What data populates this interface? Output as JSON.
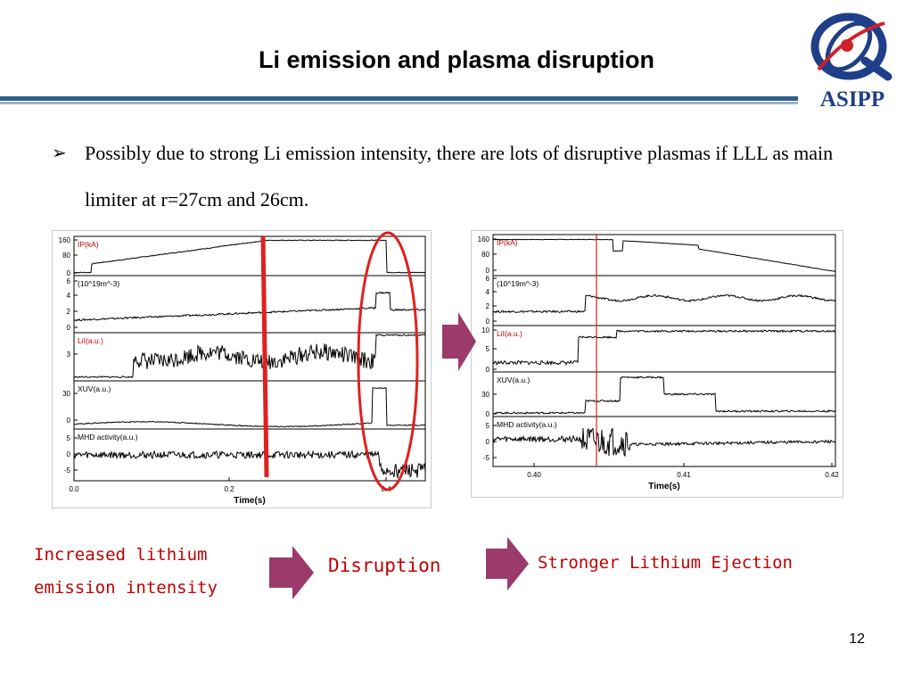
{
  "slide": {
    "title": "Li emission and plasma disruption",
    "page_number": "12"
  },
  "logo": {
    "text": "ASIPP"
  },
  "bullet": {
    "marker": "➢",
    "text": "Possibly due to strong Li emission intensity, there are lots of disruptive plasmas if LLL as main limiter at r=27cm and 26cm."
  },
  "left_plot": {
    "panels": [
      {
        "label": "IP(kA)",
        "ticks": [
          "160",
          "80",
          "0"
        ]
      },
      {
        "label": "(10^19m^-3)",
        "ticks": [
          "6",
          "4",
          "2",
          "0"
        ]
      },
      {
        "label": "LiI(a.u.)",
        "ticks": [
          "3"
        ]
      },
      {
        "label": "XUV(a.u.)",
        "ticks": [
          "30",
          "0"
        ]
      },
      {
        "label": "MHD activity(a.u.)",
        "ticks": [
          "5",
          "0",
          "-5"
        ]
      }
    ],
    "x_ticks": [
      "0.0",
      "0.2",
      "0.4"
    ],
    "xlabel": "Time(s)"
  },
  "right_plot": {
    "panels": [
      {
        "label": "IP(kA)",
        "ticks": [
          "160",
          "80",
          "0"
        ]
      },
      {
        "label": "(10^19m^-3)",
        "ticks": [
          "6",
          "4",
          "2",
          "0"
        ]
      },
      {
        "label": "LiI(a.u.)",
        "ticks": [
          "10",
          "5",
          "0"
        ]
      },
      {
        "label": "XUV(a.u.)",
        "ticks": [
          "30",
          "0"
        ]
      },
      {
        "label": "MHD activity(a.u.)",
        "ticks": [
          "5",
          "0",
          "-5"
        ]
      }
    ],
    "x_ticks": [
      "0.40",
      "0.41",
      "0.42"
    ],
    "xlabel": "Time(s)"
  },
  "captions": {
    "increased_line1": "Increased lithium",
    "increased_line2": "emission intensity",
    "disruption": "Disruption",
    "stronger": "Stronger Lithium Ejection"
  },
  "colors": {
    "accent_red": "#c00000",
    "arrow": "#9b3a6b",
    "rule": "#2f5f8e",
    "logo_blue": "#1f3f8a"
  }
}
